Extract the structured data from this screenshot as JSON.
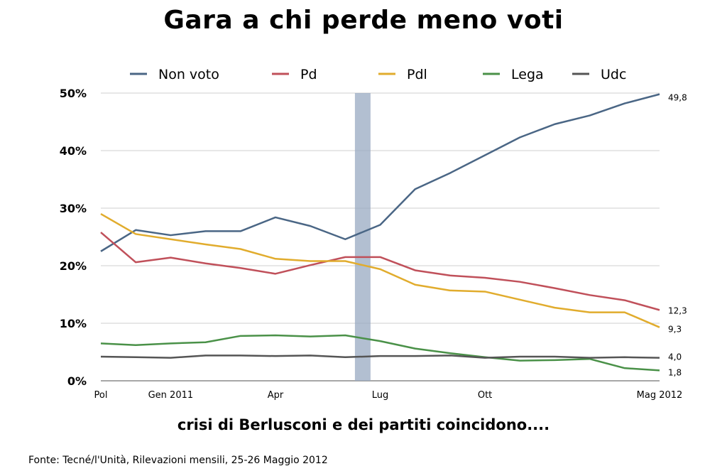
{
  "title": "Gara a chi perde meno voti",
  "subtitle": "crisi di Berlusconi e dei partiti coincidono....",
  "source": "Fonte: Tecné/l'Unità, Rilevazioni mensili, 25-26 Maggio 2012",
  "chart_data": {
    "type": "line",
    "title": "Gara a chi perde meno voti",
    "xlabel": "",
    "ylabel": "",
    "ylim": [
      0,
      50
    ],
    "yticks": [
      "0%",
      "10%",
      "20%",
      "30%",
      "40%",
      "50%"
    ],
    "x_tick_labels": [
      {
        "label": "Pol",
        "index": 0
      },
      {
        "label": "Gen 2011",
        "index": 2
      },
      {
        "label": "Apr",
        "index": 5
      },
      {
        "label": "Lug",
        "index": 8
      },
      {
        "label": "Ott",
        "index": 11
      },
      {
        "label": "Mag 2012",
        "index": 16
      }
    ],
    "highlight_index": 7.5,
    "grid": true,
    "legend_position": "top",
    "series": [
      {
        "name": "Non voto",
        "color": "#4a6685",
        "values": [
          22.5,
          26.2,
          25.3,
          26.0,
          26.0,
          28.4,
          26.9,
          24.6,
          27.1,
          33.3,
          36.1,
          39.2,
          42.3,
          44.6,
          46.1,
          48.2,
          49.8
        ],
        "end_label": "49,8"
      },
      {
        "name": "Pd",
        "color": "#c0505a",
        "values": [
          25.8,
          20.6,
          21.4,
          20.4,
          19.6,
          18.6,
          20.1,
          21.5,
          21.5,
          19.2,
          18.3,
          17.9,
          17.2,
          16.1,
          14.9,
          14.0,
          12.3
        ],
        "end_label": "12,3"
      },
      {
        "name": "Pdl",
        "color": "#e1ac2d",
        "values": [
          29.0,
          25.5,
          24.6,
          23.7,
          22.9,
          21.2,
          20.8,
          20.8,
          19.4,
          16.7,
          15.7,
          15.5,
          14.1,
          12.7,
          11.9,
          11.9,
          9.3
        ],
        "end_label": "9,3"
      },
      {
        "name": "Lega",
        "color": "#4a9148",
        "values": [
          6.5,
          6.2,
          6.5,
          6.7,
          7.8,
          7.9,
          7.7,
          7.9,
          6.9,
          5.6,
          4.8,
          4.1,
          3.5,
          3.6,
          3.8,
          2.2,
          1.8
        ],
        "end_label": "1,8"
      },
      {
        "name": "Udc",
        "color": "#555555",
        "values": [
          4.2,
          4.1,
          4.0,
          4.4,
          4.4,
          4.3,
          4.4,
          4.1,
          4.3,
          4.3,
          4.4,
          4.0,
          4.2,
          4.2,
          4.0,
          4.1,
          4.0
        ],
        "end_label": "4,0"
      }
    ]
  }
}
